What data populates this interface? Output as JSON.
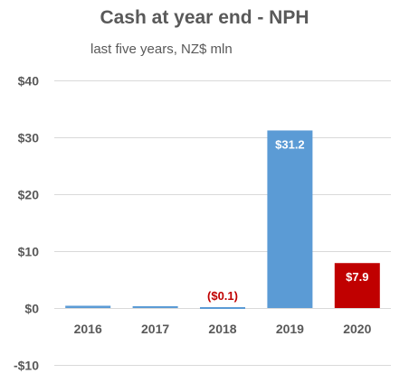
{
  "chart_data": {
    "type": "bar",
    "title": "Cash at year end - NPH",
    "subtitle": "last five years, NZ$ mln",
    "categories": [
      "2016",
      "2017",
      "2018",
      "2019",
      "2020"
    ],
    "values": [
      0.4,
      0.3,
      -0.1,
      31.2,
      7.9
    ],
    "data_labels": [
      "",
      "",
      "($0.1)",
      "$31.2",
      "$7.9"
    ],
    "bar_colors": [
      "#5b9bd5",
      "#5b9bd5",
      "#5b9bd5",
      "#5b9bd5",
      "#c00000"
    ],
    "data_label_colors": [
      "",
      "",
      "#c00000",
      "#ffffff",
      "#ffffff"
    ],
    "y_ticks": [
      -10,
      0,
      10,
      20,
      30,
      40
    ],
    "y_tick_labels": [
      "-$10",
      "$0",
      "$10",
      "$20",
      "$30",
      "$40"
    ],
    "ylim": [
      -10,
      40
    ],
    "grid": true,
    "legend": "none",
    "xlabel": "",
    "ylabel": ""
  }
}
